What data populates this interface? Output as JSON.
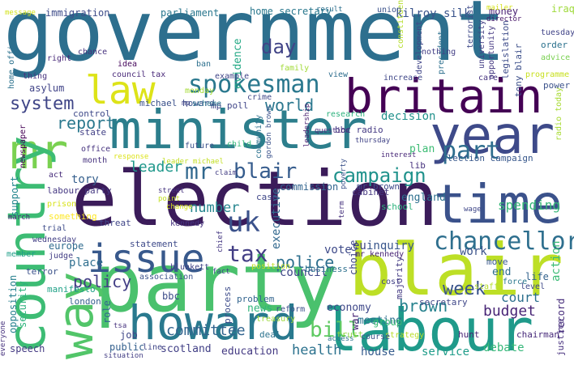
{
  "words": [
    {
      "text": "government",
      "color": "#2d6f8e"
    },
    {
      "text": "election",
      "color": "#3b1c5a"
    },
    {
      "text": "party",
      "color": "#4ac16d"
    },
    {
      "text": "minister",
      "color": "#2c7e8c"
    },
    {
      "text": "blair",
      "color": "#bddf26"
    },
    {
      "text": "labour",
      "color": "#1f9a8a"
    },
    {
      "text": "year",
      "color": "#3e4a89"
    },
    {
      "text": "britain",
      "color": "#440154"
    },
    {
      "text": "time",
      "color": "#3b528b"
    },
    {
      "text": "howard",
      "color": "#29798e"
    },
    {
      "text": "law",
      "color": "#dde318"
    },
    {
      "text": "mr",
      "color": "#7ad151"
    },
    {
      "text": "country",
      "color": "#3dbc74"
    },
    {
      "text": "way",
      "color": "#52c569"
    },
    {
      "text": "issue",
      "color": "#38598c"
    },
    {
      "text": "spokesman",
      "color": "#2a788e"
    },
    {
      "text": "chancellor",
      "color": "#2e6f8e"
    },
    {
      "text": "campaign",
      "color": "#20928c"
    },
    {
      "text": "part",
      "color": "#2e6e8e"
    },
    {
      "text": "uk",
      "color": "#3b528b"
    },
    {
      "text": "tax",
      "color": "#433e85"
    },
    {
      "text": "mr",
      "color": "#31688e"
    },
    {
      "text": "blair",
      "color": "#365c8d"
    },
    {
      "text": "day",
      "color": "#414487"
    },
    {
      "text": "report",
      "color": "#2a788e"
    },
    {
      "text": "leader",
      "color": "#1f988b"
    },
    {
      "text": "world",
      "color": "#2a778e"
    },
    {
      "text": "system",
      "color": "#404688"
    },
    {
      "text": "police",
      "color": "#2e6f8e"
    },
    {
      "text": "policy",
      "color": "#433e85"
    },
    {
      "text": "brown",
      "color": "#26828e"
    },
    {
      "text": "week",
      "color": "#3a548c"
    },
    {
      "text": "budget",
      "color": "#482576"
    },
    {
      "text": "committee",
      "color": "#32648e"
    },
    {
      "text": "bill",
      "color": "#5ec962"
    },
    {
      "text": "number",
      "color": "#25858e"
    },
    {
      "text": "council",
      "color": "#3f4788"
    },
    {
      "text": "health",
      "color": "#2c728e"
    },
    {
      "text": "education",
      "color": "#443a83"
    },
    {
      "text": "scotland",
      "color": "#424086"
    },
    {
      "text": "service",
      "color": "#1e9c89"
    },
    {
      "text": "home secretary",
      "color": "#2a788e"
    },
    {
      "text": "kilroy silk",
      "color": "#3a548c"
    },
    {
      "text": "immigration",
      "color": "#3e4c8a"
    },
    {
      "text": "parliament",
      "color": "#2a778e"
    },
    {
      "text": "money",
      "color": "#482173"
    },
    {
      "text": "iraq",
      "color": "#9fda3a"
    },
    {
      "text": "evidence",
      "color": "#22a884"
    },
    {
      "text": "mp poll",
      "color": "#404588"
    },
    {
      "text": "michael howard",
      "color": "#3b528b"
    },
    {
      "text": "council tax",
      "color": "#482878"
    },
    {
      "text": "decision",
      "color": "#21918c"
    },
    {
      "text": "research",
      "color": "#2db27d"
    },
    {
      "text": "bbc radio",
      "color": "#443983"
    },
    {
      "text": "control",
      "color": "#3e4989"
    },
    {
      "text": "state",
      "color": "#424086"
    },
    {
      "text": "plan",
      "color": "#3dbc74"
    },
    {
      "text": "lib",
      "color": "#46327e"
    },
    {
      "text": "election campaign",
      "color": "#38588c"
    },
    {
      "text": "england",
      "color": "#2d708e"
    },
    {
      "text": "commission",
      "color": "#32648e"
    },
    {
      "text": "mr brown",
      "color": "#3e4989"
    },
    {
      "text": "tory",
      "color": "#355f8d"
    },
    {
      "text": "labour party",
      "color": "#453882"
    },
    {
      "text": "support",
      "color": "#24878e"
    },
    {
      "text": "case",
      "color": "#3f4788"
    },
    {
      "text": "cabinet",
      "color": "#453781"
    },
    {
      "text": "school",
      "color": "#2db27d"
    },
    {
      "text": "spending",
      "color": "#37b878"
    },
    {
      "text": "executive",
      "color": "#31688e"
    },
    {
      "text": "vote",
      "color": "#3e4a89"
    },
    {
      "text": "inquiry",
      "color": "#39568c"
    },
    {
      "text": "eu",
      "color": "#414487"
    },
    {
      "text": "work",
      "color": "#3b528b"
    },
    {
      "text": "action",
      "color": "#3bbb75"
    },
    {
      "text": "court",
      "color": "#2d708e"
    },
    {
      "text": "record",
      "color": "#472d7b"
    },
    {
      "text": "debate",
      "color": "#35b779"
    },
    {
      "text": "house",
      "color": "#365c8d"
    },
    {
      "text": "meeting",
      "color": "#2c718e"
    },
    {
      "text": "economy",
      "color": "#3f4889"
    },
    {
      "text": "news",
      "color": "#31b57b"
    },
    {
      "text": "place",
      "color": "#2e6e8e"
    },
    {
      "text": "bbc",
      "color": "#3d4d8a"
    },
    {
      "text": "role",
      "color": "#31688e"
    },
    {
      "text": "job",
      "color": "#3f4788"
    },
    {
      "text": "public",
      "color": "#34608d"
    },
    {
      "text": "security",
      "color": "#2db27d"
    },
    {
      "text": "opposition",
      "color": "#27808e"
    },
    {
      "text": "speech",
      "color": "#443a83"
    },
    {
      "text": "europe",
      "color": "#2f6b8e"
    },
    {
      "text": "something",
      "color": "#fde725"
    },
    {
      "text": "threat",
      "color": "#404688"
    },
    {
      "text": "statement",
      "color": "#3e4a89"
    },
    {
      "text": "group",
      "color": "#3bbb75"
    },
    {
      "text": "secretary",
      "color": "#3f4788"
    },
    {
      "text": "end",
      "color": "#2e6e8e"
    },
    {
      "text": "life",
      "color": "#33638d"
    },
    {
      "text": "london",
      "color": "#355f8d"
    },
    {
      "text": "manifesto",
      "color": "#1fa187"
    },
    {
      "text": "terror",
      "color": "#3b528b"
    },
    {
      "text": "trust",
      "color": "#8fd744"
    },
    {
      "text": "deal",
      "color": "#2c728e"
    },
    {
      "text": "line",
      "color": "#404688"
    },
    {
      "text": "problem",
      "color": "#32648e"
    },
    {
      "text": "reform",
      "color": "#3c4f8a"
    },
    {
      "text": "cost",
      "color": "#424086"
    },
    {
      "text": "majority",
      "color": "#443a83"
    },
    {
      "text": "war",
      "color": "#482475"
    },
    {
      "text": "justice",
      "color": "#46307e"
    },
    {
      "text": "chairman",
      "color": "#472a7a"
    },
    {
      "text": "hunt",
      "color": "#482475"
    },
    {
      "text": "strategy",
      "color": "#b8de29"
    },
    {
      "text": "course",
      "color": "#3b528b"
    },
    {
      "text": "process",
      "color": "#3e4c8a"
    },
    {
      "text": "treasury",
      "color": "#9dd93b"
    },
    {
      "text": "staff",
      "color": "#b5de2b"
    },
    {
      "text": "force",
      "color": "#2a788e"
    },
    {
      "text": "level",
      "color": "#3f4889"
    },
    {
      "text": "choice",
      "color": "#3f4788"
    },
    {
      "text": "business",
      "color": "#2d708e"
    },
    {
      "text": "move",
      "color": "#38588c"
    },
    {
      "text": "mr kennedy",
      "color": "#482475"
    },
    {
      "text": "position",
      "color": "#c2df23"
    },
    {
      "text": "association",
      "color": "#3b528b"
    },
    {
      "text": "blunkett",
      "color": "#414487"
    },
    {
      "text": "kennedy",
      "color": "#46337f"
    },
    {
      "text": "judge",
      "color": "#433e85"
    },
    {
      "text": "member",
      "color": "#1f9e89"
    },
    {
      "text": "wednesday",
      "color": "#423f85"
    },
    {
      "text": "trial",
      "color": "#3e4c8a"
    },
    {
      "text": "prison",
      "color": "#d8e219"
    },
    {
      "text": "act",
      "color": "#472c7a"
    },
    {
      "text": "office",
      "color": "#46337f"
    },
    {
      "text": "month",
      "color": "#46327e"
    },
    {
      "text": "newspaper",
      "color": "#440154"
    },
    {
      "text": "future",
      "color": "#3b518b"
    },
    {
      "text": "crime",
      "color": "#3f4788"
    },
    {
      "text": "scheme",
      "color": "#2c738e"
    },
    {
      "text": "monday",
      "color": "#a5db36"
    },
    {
      "text": "idea",
      "color": "#46085c"
    },
    {
      "text": "ban",
      "color": "#2d708e"
    },
    {
      "text": "asylum",
      "color": "#404387"
    },
    {
      "text": "thing",
      "color": "#46327e"
    },
    {
      "text": "family",
      "color": "#a2da37"
    },
    {
      "text": "view",
      "color": "#2e6e8e"
    },
    {
      "text": "increase",
      "color": "#3f4788"
    },
    {
      "text": "care",
      "color": "#46337f"
    },
    {
      "text": "tony blair",
      "color": "#3c4f8a"
    },
    {
      "text": "programme",
      "color": "#c8e020"
    },
    {
      "text": "power",
      "color": "#3b528b"
    },
    {
      "text": "radio today",
      "color": "#a8db34"
    },
    {
      "text": "order",
      "color": "#2c728e"
    },
    {
      "text": "tuesday",
      "color": "#404387"
    },
    {
      "text": "advice",
      "color": "#7ad151"
    },
    {
      "text": "legislation",
      "color": "#3e4c8a"
    },
    {
      "text": "opportunity",
      "color": "#453882"
    },
    {
      "text": "university",
      "color": "#433e85"
    },
    {
      "text": "terrorist",
      "color": "#3e4989"
    },
    {
      "text": "constituency",
      "color": "#b5de2b"
    },
    {
      "text": "director",
      "color": "#481769"
    },
    {
      "text": "union",
      "color": "#3b528b"
    },
    {
      "text": "result",
      "color": "#2d708e"
    },
    {
      "text": "president",
      "color": "#2d708e"
    },
    {
      "text": "development",
      "color": "#404588"
    },
    {
      "text": "example",
      "color": "#404588"
    },
    {
      "text": "nothing",
      "color": "#433e85"
    },
    {
      "text": "chance",
      "color": "#46327e"
    },
    {
      "text": "right",
      "color": "#482878"
    },
    {
      "text": "message",
      "color": "#d2e21b"
    },
    {
      "text": "home office",
      "color": "#2c728e"
    },
    {
      "text": "mailer",
      "color": "#d5e21a"
    },
    {
      "text": "question",
      "color": "#4b2c7d"
    },
    {
      "text": "thursday",
      "color": "#414487"
    },
    {
      "text": "interest",
      "color": "#482878"
    },
    {
      "text": "leadership",
      "color": "#481f70"
    },
    {
      "text": "community",
      "color": "#2c718e"
    },
    {
      "text": "gordon brown",
      "color": "#3b528b"
    },
    {
      "text": "child",
      "color": "#35b779"
    },
    {
      "text": "street",
      "color": "#463480"
    },
    {
      "text": "point",
      "color": "#c2df23"
    },
    {
      "text": "change",
      "color": "#d5e21a"
    },
    {
      "text": "claim",
      "color": "#433e85"
    },
    {
      "text": "leader michael",
      "color": "#c2df23"
    },
    {
      "text": "response",
      "color": "#dce319"
    },
    {
      "text": "fact",
      "color": "#404588"
    },
    {
      "text": "chief",
      "color": "#453882"
    },
    {
      "text": "access",
      "color": "#2c728e"
    },
    {
      "text": "situation",
      "color": "#433e85"
    },
    {
      "text": "tsa",
      "color": "#46327e"
    },
    {
      "text": "term",
      "color": "#46327e"
    },
    {
      "text": "wage",
      "color": "#3f4788"
    },
    {
      "text": "poverty",
      "color": "#3b528b"
    },
    {
      "text": "everyone",
      "color": "#46327e"
    },
    {
      "text": "march",
      "color": "#482878"
    },
    {
      "text": "mp",
      "color": "#404387"
    }
  ]
}
